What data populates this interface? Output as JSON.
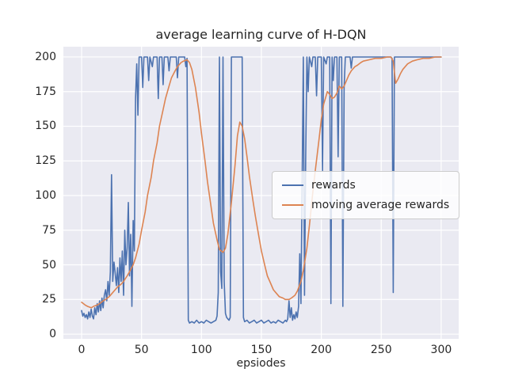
{
  "figure": {
    "title": "average learning curve of H-DQN",
    "xlabel": "epsiodes"
  },
  "chart_data": {
    "type": "line",
    "title": "average learning curve of H-DQN",
    "xlabel": "epsiodes",
    "ylabel": "",
    "xlim": [
      -15.2,
      314.6
    ],
    "ylim": [
      -3.4,
      207.4
    ],
    "x_ticks": [
      0,
      50,
      100,
      150,
      200,
      250,
      300
    ],
    "y_ticks": [
      0,
      25,
      50,
      75,
      100,
      125,
      150,
      175,
      200
    ],
    "grid": true,
    "plot_bg": "#eaeaf2",
    "grid_color": "#ffffff",
    "text_color": "#262626",
    "legend": {
      "position": "center-right",
      "labels": [
        "rewards",
        "moving average rewards"
      ]
    },
    "series": [
      {
        "name": "rewards",
        "color": "#4c72b0",
        "x": [
          0,
          1,
          2,
          3,
          4,
          5,
          6,
          7,
          8,
          9,
          10,
          11,
          12,
          13,
          14,
          15,
          16,
          17,
          18,
          19,
          20,
          21,
          22,
          23,
          24,
          25,
          26,
          27,
          28,
          29,
          30,
          31,
          32,
          33,
          34,
          35,
          36,
          37,
          38,
          39,
          40,
          41,
          42,
          43,
          44,
          45,
          46,
          47,
          48,
          50,
          51,
          52,
          55,
          56,
          57,
          59,
          60,
          63,
          64,
          65,
          67,
          68,
          69,
          72,
          73,
          74,
          79,
          80,
          81,
          86,
          87,
          88,
          89,
          90,
          92,
          94,
          96,
          98,
          100,
          102,
          104,
          106,
          108,
          110,
          112,
          113,
          114,
          115,
          116,
          117,
          118,
          119,
          120,
          121,
          122,
          123,
          124,
          125,
          128,
          131,
          134,
          135,
          136,
          138,
          140,
          142,
          144,
          146,
          148,
          150,
          152,
          154,
          156,
          158,
          160,
          162,
          164,
          166,
          168,
          170,
          171,
          172,
          173,
          174,
          175,
          176,
          177,
          178,
          179,
          180,
          181,
          182,
          183,
          184,
          185,
          186,
          187,
          188,
          189,
          190,
          192,
          193,
          195,
          196,
          197,
          200,
          201,
          202,
          204,
          205,
          207,
          208,
          209,
          210,
          211,
          213,
          214,
          215,
          217,
          218,
          219,
          220,
          224,
          225,
          226,
          230,
          235,
          240,
          245,
          250,
          255,
          258,
          259,
          260,
          261,
          265,
          270,
          275,
          280,
          285,
          290,
          295,
          300
        ],
        "y": [
          17,
          13,
          15,
          12,
          14,
          11,
          16,
          12,
          18,
          13,
          11,
          19,
          14,
          22,
          16,
          24,
          17,
          26,
          19,
          28,
          32,
          24,
          38,
          28,
          45,
          115,
          38,
          52,
          44,
          35,
          48,
          30,
          55,
          38,
          60,
          28,
          75,
          50,
          62,
          95,
          42,
          72,
          20,
          82,
          60,
          170,
          195,
          158,
          200,
          200,
          178,
          200,
          200,
          183,
          200,
          193,
          200,
          200,
          170,
          200,
          200,
          180,
          200,
          200,
          190,
          200,
          200,
          185,
          200,
          200,
          193,
          199,
          10,
          8,
          9,
          8,
          10,
          8,
          9,
          8,
          10,
          9,
          8,
          9,
          10,
          13,
          30,
          200,
          45,
          33,
          200,
          38,
          15,
          12,
          11,
          10,
          12,
          200,
          200,
          200,
          200,
          12,
          9,
          10,
          8,
          9,
          10,
          8,
          9,
          10,
          8,
          9,
          10,
          8,
          9,
          8,
          10,
          9,
          8,
          10,
          9,
          11,
          24,
          12,
          19,
          10,
          14,
          11,
          16,
          12,
          20,
          58,
          22,
          110,
          200,
          28,
          128,
          200,
          175,
          200,
          193,
          200,
          200,
          172,
          200,
          200,
          118,
          200,
          195,
          200,
          200,
          22,
          200,
          183,
          200,
          200,
          128,
          200,
          200,
          20,
          178,
          200,
          200,
          192,
          200,
          200,
          200,
          200,
          200,
          200,
          200,
          200,
          199,
          30,
          200,
          200,
          200,
          200,
          200,
          200,
          200,
          200,
          200
        ]
      },
      {
        "name": "moving average rewards",
        "color": "#dd8452",
        "x": [
          0,
          3,
          5,
          8,
          10,
          13,
          15,
          18,
          20,
          23,
          25,
          28,
          30,
          33,
          35,
          38,
          40,
          43,
          45,
          48,
          50,
          53,
          55,
          58,
          60,
          63,
          65,
          68,
          70,
          73,
          75,
          78,
          80,
          83,
          85,
          88,
          90,
          92,
          95,
          98,
          100,
          103,
          105,
          108,
          110,
          113,
          115,
          118,
          120,
          122,
          125,
          128,
          130,
          132,
          134,
          136,
          138,
          140,
          143,
          145,
          148,
          150,
          153,
          155,
          158,
          160,
          163,
          165,
          168,
          170,
          173,
          175,
          178,
          180,
          183,
          185,
          188,
          190,
          193,
          195,
          198,
          200,
          202,
          204,
          205,
          207,
          209,
          211,
          213,
          215,
          217,
          219,
          221,
          223,
          225,
          228,
          230,
          233,
          235,
          240,
          245,
          250,
          255,
          258,
          260,
          262,
          264,
          266,
          268,
          272,
          276,
          280,
          285,
          290,
          295,
          300
        ],
        "y": [
          23,
          21,
          20,
          19,
          20,
          21,
          22,
          24,
          25,
          27,
          29,
          32,
          34,
          36,
          38,
          42,
          45,
          50,
          55,
          65,
          75,
          88,
          100,
          113,
          125,
          138,
          150,
          162,
          170,
          179,
          185,
          190,
          193,
          196,
          197,
          198,
          196,
          191,
          178,
          160,
          145,
          125,
          110,
          92,
          80,
          68,
          61,
          59,
          62,
          72,
          95,
          122,
          143,
          153,
          150,
          141,
          128,
          114,
          96,
          85,
          70,
          60,
          49,
          42,
          36,
          32,
          29,
          27,
          26,
          25,
          25,
          26,
          28,
          31,
          38,
          46,
          62,
          78,
          103,
          118,
          140,
          155,
          166,
          172,
          175,
          173,
          170,
          171,
          174,
          179,
          177,
          179,
          183,
          187,
          190,
          193,
          194,
          196,
          197,
          198,
          199,
          199,
          200,
          200,
          197,
          181,
          184,
          188,
          191,
          195,
          197,
          198,
          199,
          199,
          200,
          200
        ]
      }
    ]
  }
}
